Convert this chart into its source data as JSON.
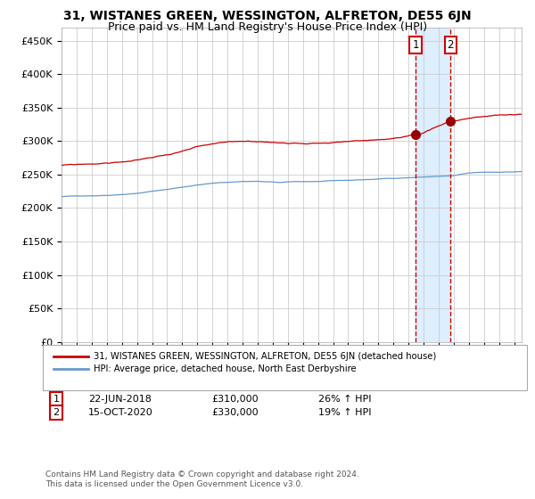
{
  "title": "31, WISTANES GREEN, WESSINGTON, ALFRETON, DE55 6JN",
  "subtitle": "Price paid vs. HM Land Registry's House Price Index (HPI)",
  "legend_line1": "31, WISTANES GREEN, WESSINGTON, ALFRETON, DE55 6JN (detached house)",
  "legend_line2": "HPI: Average price, detached house, North East Derbyshire",
  "footnote": "Contains HM Land Registry data © Crown copyright and database right 2024.\nThis data is licensed under the Open Government Licence v3.0.",
  "sale1_date": "22-JUN-2018",
  "sale1_price": 310000,
  "sale1_hpi": "26% ↑ HPI",
  "sale2_date": "15-OCT-2020",
  "sale2_price": 330000,
  "sale2_hpi": "19% ↑ HPI",
  "sale1_x": 2018.47,
  "sale2_x": 2020.79,
  "red_line_color": "#cc0000",
  "blue_line_color": "#6699cc",
  "marker_color": "#990000",
  "vline_color": "#cc0000",
  "shading_color": "#ddeeff",
  "background_color": "#ffffff",
  "grid_color": "#cccccc",
  "ylim": [
    0,
    470000
  ],
  "xlim_start": 1995,
  "xlim_end": 2025.5,
  "title_fontsize": 10,
  "subtitle_fontsize": 9
}
